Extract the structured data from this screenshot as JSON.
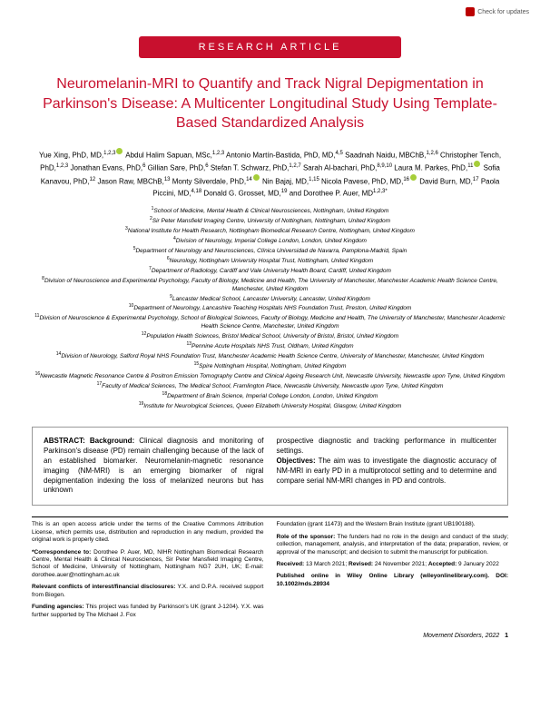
{
  "checkUpdates": "Check for updates",
  "headerLabel": "RESEARCH ARTICLE",
  "title": "Neuromelanin-MRI to Quantify and Track Nigral Depigmentation in Parkinson's Disease: A Multicenter Longitudinal Study Using Template-Based Standardized Analysis",
  "authors": [
    {
      "name": "Yue Xing, PhD, MD,",
      "sup": "1,2,3",
      "orcid": true
    },
    {
      "name": "Abdul Halim Sapuan, MSc,",
      "sup": "1,2,3"
    },
    {
      "name": "Antonio Martín-Bastida, PhD, MD,",
      "sup": "4,5"
    },
    {
      "name": "Saadnah Naidu, MBChB,",
      "sup": "1,2,6"
    },
    {
      "name": "Christopher Tench, PhD,",
      "sup": "1,2,3"
    },
    {
      "name": "Jonathan Evans, PhD,",
      "sup": "6"
    },
    {
      "name": "Gillian Sare, PhD,",
      "sup": "6"
    },
    {
      "name": "Stefan T. Schwarz, PhD,",
      "sup": "1,2,7"
    },
    {
      "name": "Sarah Al-bachari, PhD,",
      "sup": "8,9,10"
    },
    {
      "name": "Laura M. Parkes, PhD,",
      "sup": "11",
      "orcid": true
    },
    {
      "name": "Sofia Kanavou, PhD,",
      "sup": "12"
    },
    {
      "name": "Jason Raw, MBChB,",
      "sup": "13"
    },
    {
      "name": "Monty Silverdale, PhD,",
      "sup": "14",
      "orcid": true
    },
    {
      "name": "Nin Bajaj, MD,",
      "sup": "1,15"
    },
    {
      "name": "Nicola Pavese, PhD, MD,",
      "sup": "16",
      "orcid": true
    },
    {
      "name": "David Burn, MD,",
      "sup": "17"
    },
    {
      "name": "Paola Piccini, MD,",
      "sup": "4,18"
    },
    {
      "name": "Donald G. Grosset, MD,",
      "sup": "19"
    },
    {
      "name": "and Dorothee P. Auer, MD",
      "sup": "1,2,3*"
    }
  ],
  "affiliations": [
    "School of Medicine, Mental Health & Clinical Neurosciences, Nottingham, United Kingdom",
    "Sir Peter Mansfield Imaging Centre, University of Nottingham, Nottingham, United Kingdom",
    "National Institute for Health Research, Nottingham Biomedical Research Centre, Nottingham, United Kingdom",
    "Division of Neurology, Imperial College London, London, United Kingdom",
    "Department of Neurology and Neurosciences, Clínica Universidad de Navarra, Pamplona-Madrid, Spain",
    "Neurology, Nottingham University Hospital Trust, Nottingham, United Kingdom",
    "Department of Radiology, Cardiff and Vale University Health Board, Cardiff, United Kingdom",
    "Division of Neuroscience and Experimental Psychology, Faculty of Biology, Medicine and Health, The University of Manchester, Manchester Academic Health Science Centre, Manchester, United Kingdom",
    "Lancaster Medical School, Lancaster University, Lancaster, United Kingdom",
    "Department of Neurology, Lancashire Teaching Hospitals NHS Foundation Trust, Preston, United Kingdom",
    "Division of Neuroscience & Experimental Psychology, School of Biological Sciences, Faculty of Biology, Medicine and Health, The University of Manchester, Manchester Academic Health Science Centre, Manchester, United Kingdom",
    "Population Health Sciences, Bristol Medical School, University of Bristol, Bristol, United Kingdom",
    "Pennine Acute Hospitals NHS Trust, Oldham, United Kingdom",
    "Division of Neurology, Salford Royal NHS Foundation Trust, Manchester Academic Health Science Centre, University of Manchester, Manchester, United Kingdom",
    "Spire Nottingham Hospital, Nottingham, United Kingdom",
    "Newcastle Magnetic Resonance Centre & Positron Emission Tomography Centre and Clinical Ageing Research Unit, Newcastle University, Newcastle upon Tyne, United Kingdom",
    "Faculty of Medical Sciences, The Medical School, Framlington Place, Newcastle University, Newcastle upon Tyne, United Kingdom",
    "Department of Brain Science, Imperial College London, London, United Kingdom",
    "Institute for Neurological Sciences, Queen Elizabeth University Hospital, Glasgow, United Kingdom"
  ],
  "abstract": {
    "left": "ABSTRACT: Background: Clinical diagnosis and monitoring of Parkinson's disease (PD) remain challenging because of the lack of an established biomarker. Neuromelanin-magnetic resonance imaging (NM-MRI) is an emerging biomarker of nigral depigmentation indexing the loss of melanized neurons but has unknown",
    "right": "prospective diagnostic and tracking performance in multicenter settings.\nObjectives: The aim was to investigate the diagnostic accuracy of NM-MRI in early PD in a multiprotocol setting and to determine and compare serial NM-MRI changes in PD and controls."
  },
  "footnotes": {
    "openAccess": "This is an open access article under the terms of the Creative Commons Attribution License, which permits use, distribution and reproduction in any medium, provided the original work is properly cited.",
    "correspondenceLabel": "*Correspondence to:",
    "correspondence": " Dorothee P. Auer, MD, NIHR Nottingham Biomedical Research Centre, Mental Health & Clinical Neurosciences, Sir Peter Mansfield Imaging Centre, School of Medicine, University of Nottingham, Nottingham NG7 2UH, UK; E-mail: dorothee.auer@nottingham.ac.uk",
    "conflictsLabel": "Relevant conflicts of interest/financial disclosures:",
    "conflicts": " Y.X. and D.P.A. received support from Biogen.",
    "fundingLabel": "Funding agencies:",
    "funding": " This project was funded by Parkinson's UK (grant J-1204). Y.X. was further supported by The Michael J. Fox",
    "fundingCont": "Foundation (grant 11473) and the Western Brain Institute (grant UB190188).",
    "sponsorLabel": "Role of the sponsor:",
    "sponsor": " The funders had no role in the design and conduct of the study; collection, management, analysis, and interpretation of the data; preparation, review, or approval of the manuscript; and decision to submit the manuscript for publication.",
    "receivedLabel": "Received:",
    "received": " 13 March 2021; ",
    "revisedLabel": "Revised:",
    "revised": " 24 November 2021; ",
    "acceptedLabel": "Accepted:",
    "accepted": " 9 January 2022",
    "publishedLabel": "Published online in Wiley Online Library (wileyonlinelibrary.com). DOI: 10.1002/mds.28934"
  },
  "footer": {
    "journal": "Movement Disorders, 2022",
    "page": "1"
  },
  "colors": {
    "brandRed": "#c8102e",
    "orcidGreen": "#a6ce39"
  }
}
